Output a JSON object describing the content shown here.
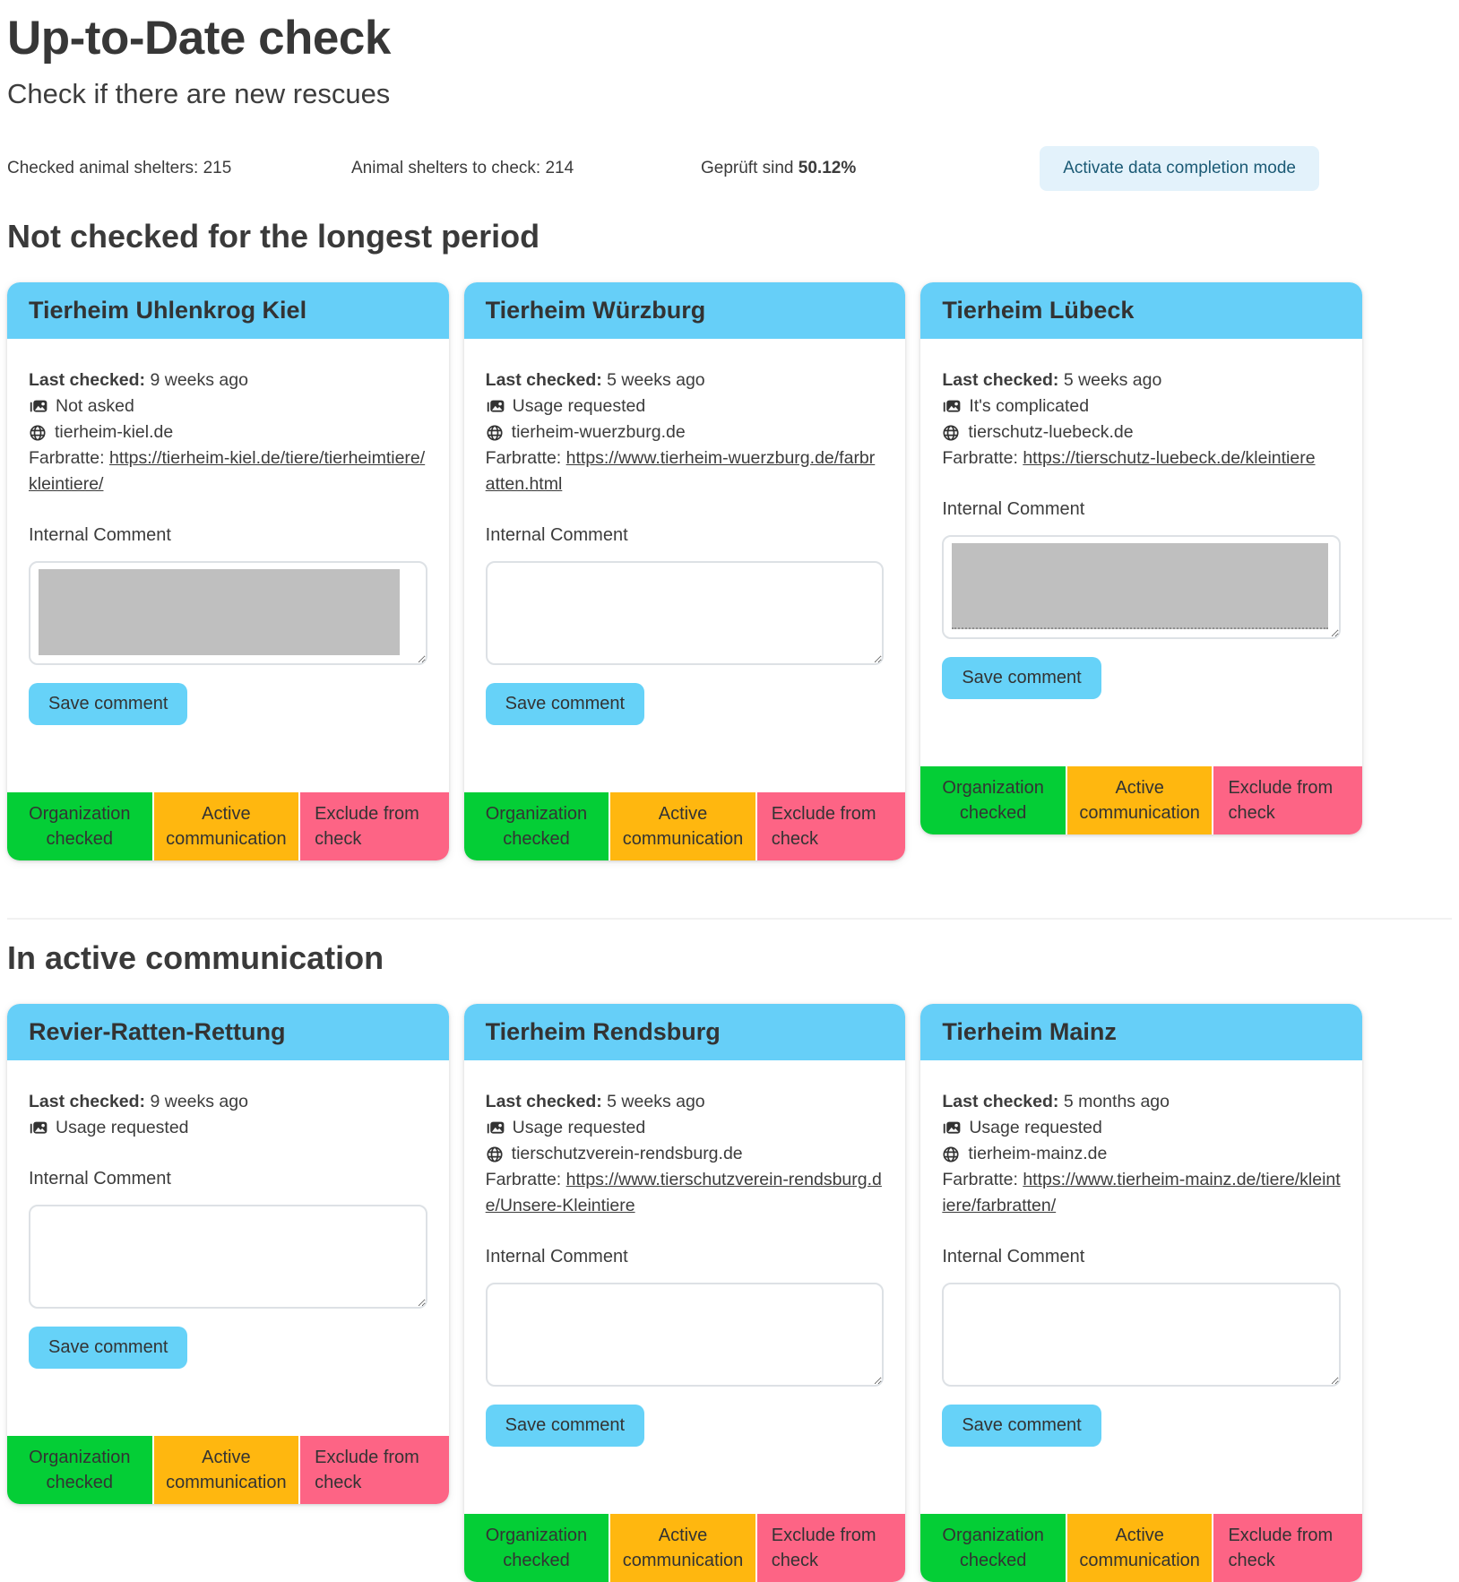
{
  "header": {
    "title": "Up-to-Date check",
    "subtitle": "Check if there are new rescues",
    "stats": [
      {
        "label": "Checked animal shelters:",
        "value": "215"
      },
      {
        "label": "Animal shelters to check:",
        "value": "214"
      },
      {
        "label": "Geprüft sind",
        "value": "50.12%"
      }
    ],
    "activate_button_label": "Activate data completion mode"
  },
  "labels": {
    "last_checked": "Last checked:",
    "internal_comment": "Internal Comment",
    "save_comment": "Save comment",
    "farbratte": "Farbratte:"
  },
  "footer_buttons": {
    "organization": "Organization checked",
    "active": "Active communication",
    "exclude": "Exclude from check"
  },
  "colors": {
    "card_header_blue": "#66cff8",
    "save_button_blue": "#66d2f8",
    "organization_green": "#04ce36",
    "active_orange": "#ffb70f",
    "exclude_pink": "#fd6485",
    "activate_button_bg": "#e3f2fb",
    "activate_button_text": "#1b5a75",
    "redaction_gray": "#bfbfbf"
  },
  "sections": [
    {
      "heading": "Not checked for the longest period",
      "cards": [
        {
          "title": "Tierheim Uhlenkrog Kiel",
          "last_checked": "9 weeks ago",
          "status": "Not asked",
          "website": "tierheim-kiel.de",
          "farbratte_url": "https://tierheim-kiel.de/tiere/tierheimtiere/kleintiere/"
        },
        {
          "title": "Tierheim Würzburg",
          "last_checked": "5 weeks ago",
          "status": "Usage requested",
          "website": "tierheim-wuerzburg.de",
          "farbratte_url": "https://www.tierheim-wuerzburg.de/farbratten.html"
        },
        {
          "title": "Tierheim Lübeck",
          "last_checked": "5 weeks ago",
          "status": "It's complicated",
          "website": "tierschutz-luebeck.de",
          "farbratte_url": "https://tierschutz-luebeck.de/kleintiere"
        }
      ]
    },
    {
      "heading": "In active communication",
      "cards": [
        {
          "title": "Revier-Ratten-Rettung",
          "last_checked": "9 weeks ago",
          "status": "Usage requested"
        },
        {
          "title": "Tierheim Rendsburg",
          "last_checked": "5 weeks ago",
          "status": "Usage requested",
          "website": "tierschutzverein-rendsburg.de",
          "farbratte_url": "https://www.tierschutzverein-rendsburg.de/Unsere-Kleintiere"
        },
        {
          "title": "Tierheim Mainz",
          "last_checked": "5 months ago",
          "status": "Usage requested",
          "website": "tierheim-mainz.de",
          "farbratte_url": "https://www.tierheim-mainz.de/tiere/kleintiere/farbratten/"
        }
      ]
    }
  ]
}
